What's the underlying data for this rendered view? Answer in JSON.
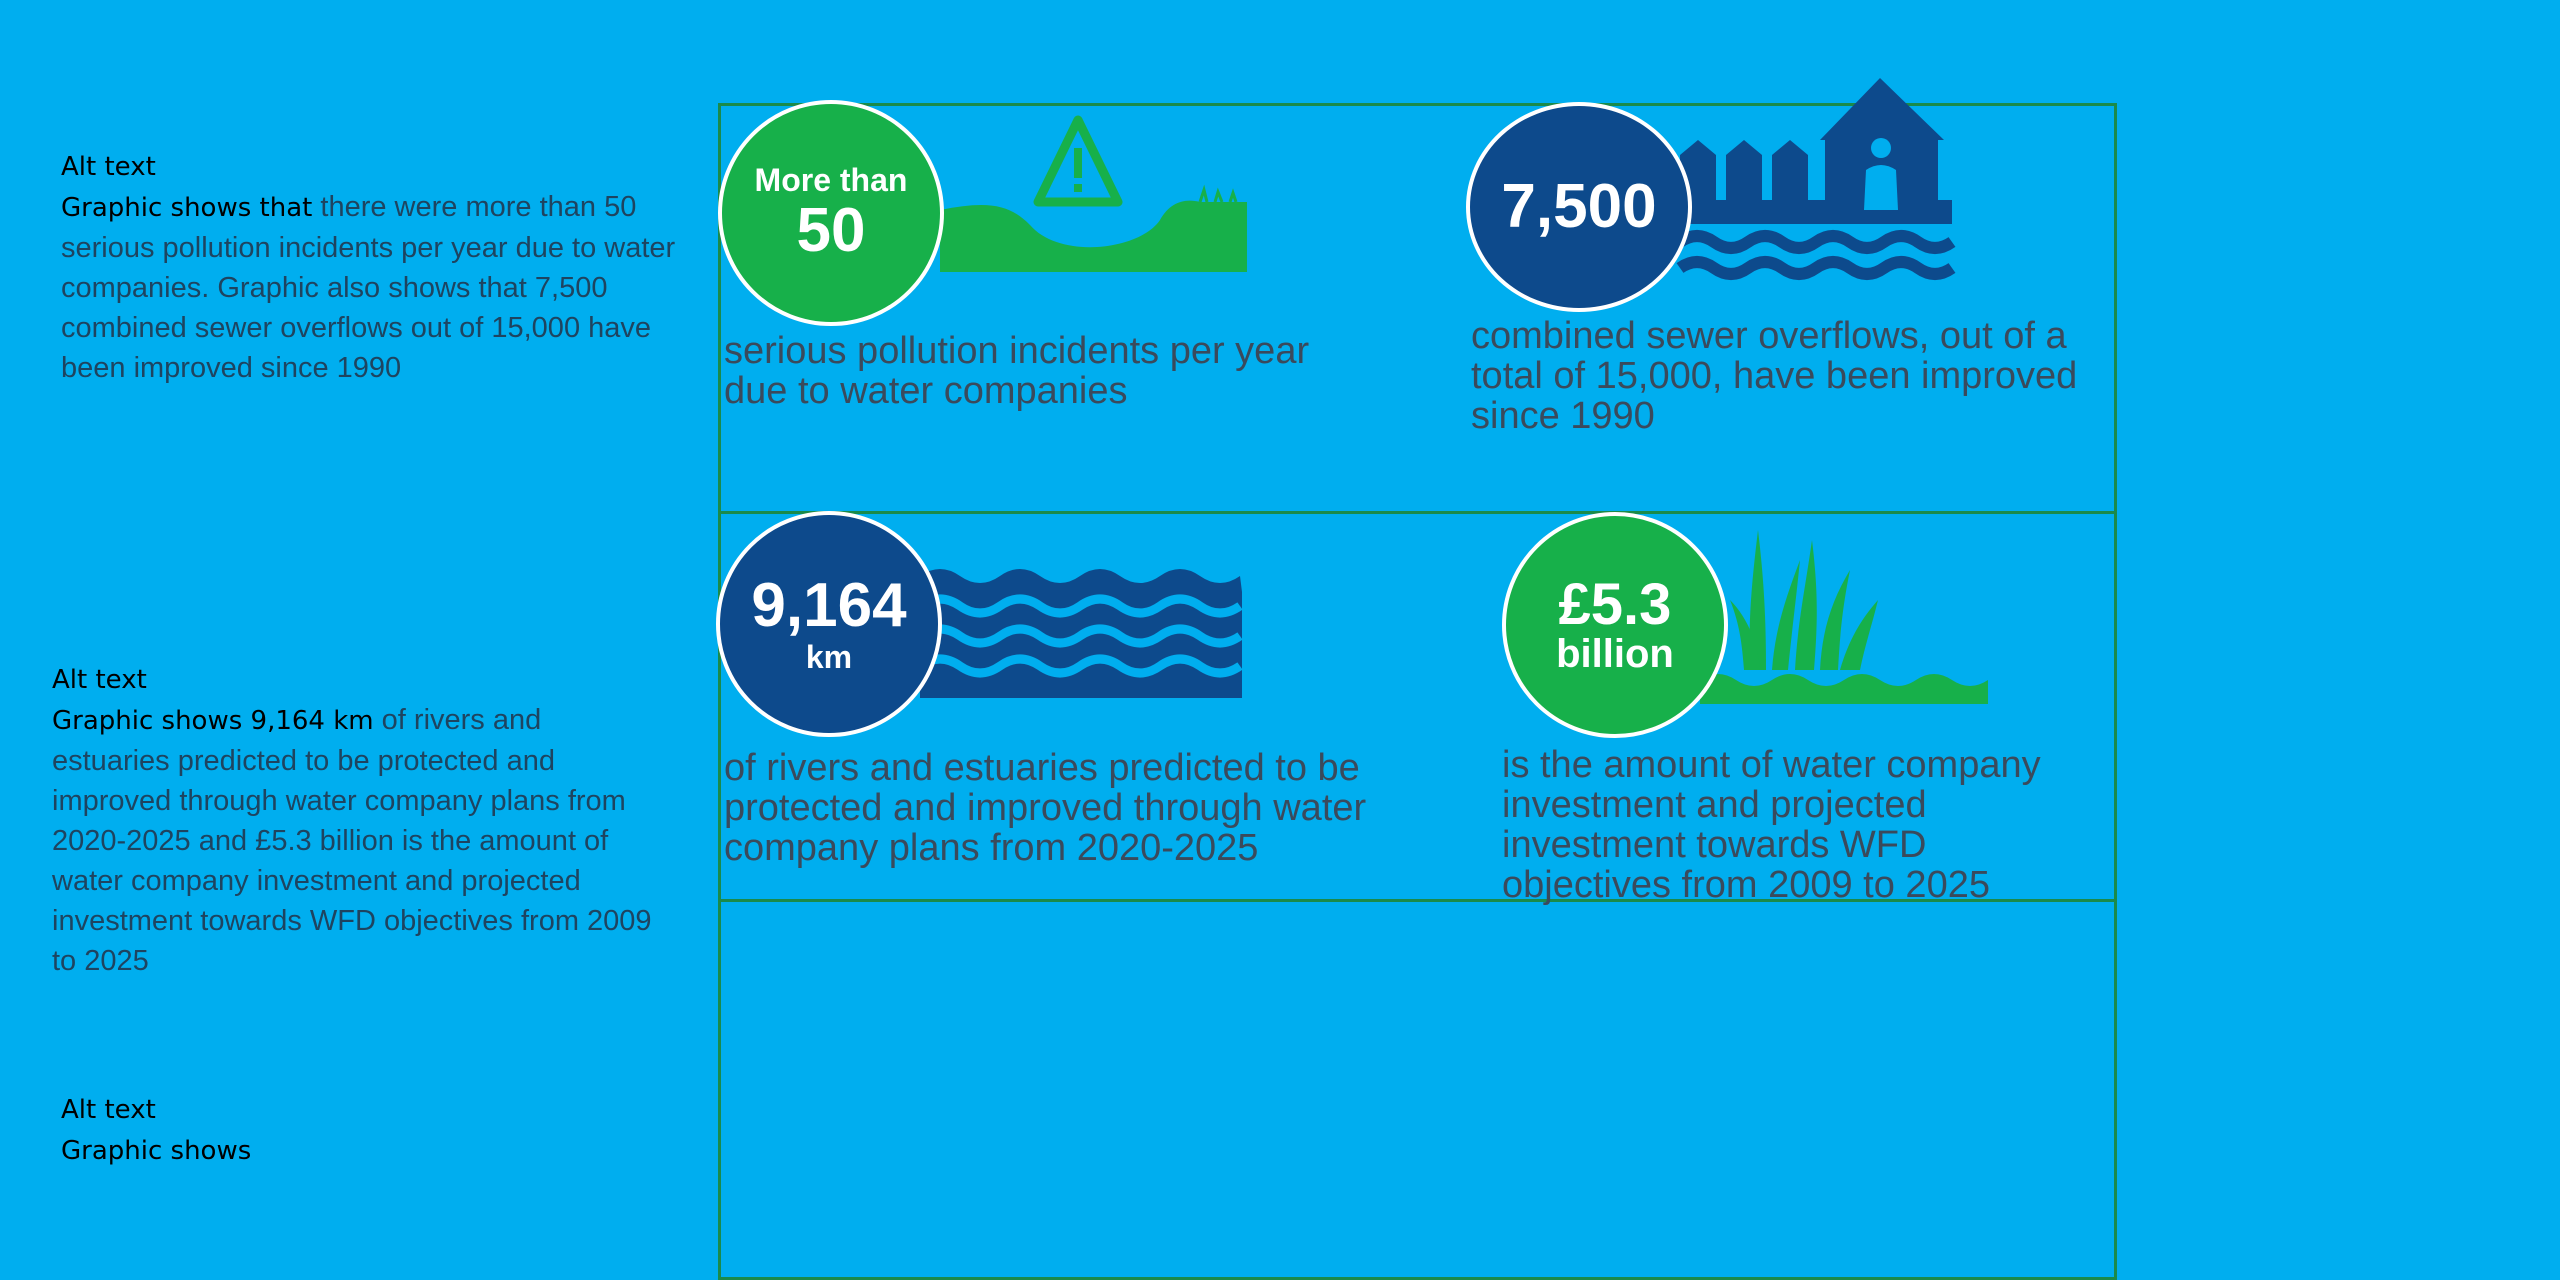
{
  "alt_blocks": [
    {
      "heading": "Alt text",
      "lead": "Graphic shows that",
      "body": " there were more than 50 serious pollution incidents per year due to water companies. Graphic also shows that 7,500 combined sewer overflows out of 15,000 have been improved since 1990"
    },
    {
      "heading": "Alt text",
      "lead": "Graphic shows 9,164 km",
      "body": " of rivers and estuaries predicted to be protected and improved through water company plans from 2020-2025 and £5.3 billion is the amount of water company investment and projected investment towards WFD objectives from 2009 to 2025"
    },
    {
      "heading": "Alt text",
      "lead": "Graphic shows",
      "body": ""
    }
  ],
  "stats": [
    {
      "line1": "More than",
      "line2": "50",
      "desc": "serious pollution incidents per year due to water companies",
      "color": "#17b04a",
      "icon": "polluted-river-warning-icon"
    },
    {
      "line1": "7,500",
      "line2": "",
      "desc": "combined sewer overflows, out of a total of 15,000, have been improved since 1990",
      "color": "#0d4a8c",
      "icon": "flooded-houses-icon"
    },
    {
      "line1": "9,164",
      "line2": "km",
      "desc": "of rivers and estuaries predicted to be protected and improved through water company plans from 2020-2025",
      "color": "#0d4a8c",
      "icon": "waves-icon"
    },
    {
      "line1": "£5.3",
      "line2": "billion",
      "desc": "is the amount of water company investment and projected investment towards WFD objectives from 2009 to 2025",
      "color": "#17b04a",
      "icon": "reeds-water-icon"
    }
  ],
  "colors": {
    "background": "#00aeef",
    "green": "#17b04a",
    "navy": "#0d4a8c",
    "border": "#1b8a4a"
  }
}
